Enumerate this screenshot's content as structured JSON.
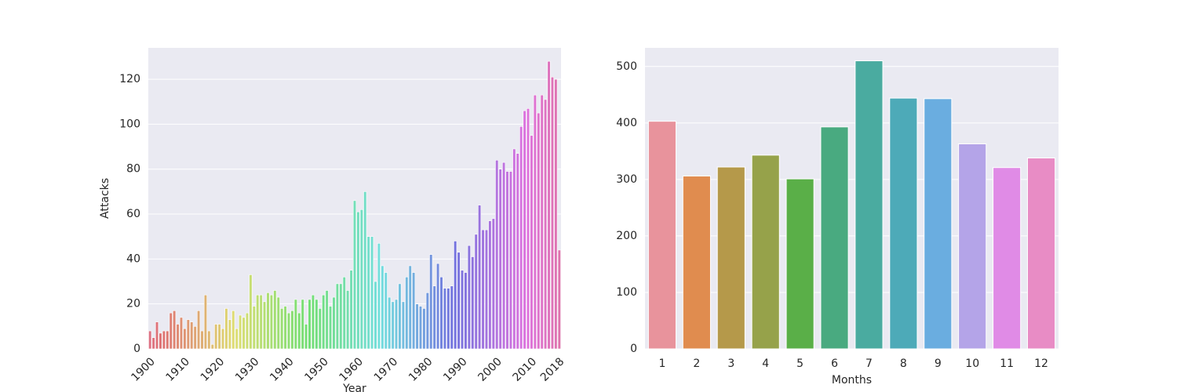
{
  "chart_data": [
    {
      "type": "bar",
      "xlabel": "Year",
      "ylabel": "Attacks",
      "palette": "husl",
      "grid": true,
      "categories": [
        "1900",
        null,
        null,
        null,
        null,
        null,
        null,
        null,
        null,
        null,
        "1910",
        null,
        null,
        null,
        null,
        null,
        null,
        null,
        null,
        null,
        "1920",
        null,
        null,
        null,
        null,
        null,
        null,
        null,
        null,
        null,
        "1930",
        null,
        null,
        null,
        null,
        null,
        null,
        null,
        null,
        null,
        "1940",
        null,
        null,
        null,
        null,
        null,
        null,
        null,
        null,
        null,
        "1950",
        null,
        null,
        null,
        null,
        null,
        null,
        null,
        null,
        null,
        "1960",
        null,
        null,
        null,
        null,
        null,
        null,
        null,
        null,
        null,
        "1970",
        null,
        null,
        null,
        null,
        null,
        null,
        null,
        null,
        null,
        "1980",
        null,
        null,
        null,
        null,
        null,
        null,
        null,
        null,
        null,
        "1990",
        null,
        null,
        null,
        null,
        null,
        null,
        null,
        null,
        null,
        "2000",
        null,
        null,
        null,
        null,
        null,
        null,
        null,
        null,
        null,
        "2010",
        null,
        null,
        null,
        null,
        null,
        null,
        null,
        "2018"
      ],
      "values": [
        8,
        5,
        12,
        7,
        8,
        8,
        16,
        17,
        11,
        14,
        9,
        13,
        12,
        10,
        17,
        8,
        24,
        8,
        2,
        11,
        11,
        9,
        18,
        13,
        17,
        9,
        15,
        14,
        16,
        33,
        19,
        24,
        24,
        21,
        25,
        24,
        26,
        23,
        18,
        19,
        16,
        17,
        22,
        16,
        22,
        11,
        22,
        24,
        22,
        18,
        24,
        26,
        19,
        23,
        29,
        29,
        32,
        26,
        35,
        66,
        61,
        62,
        70,
        50,
        50,
        30,
        47,
        37,
        34,
        23,
        21,
        22,
        29,
        21,
        32,
        37,
        34,
        20,
        19,
        18,
        25,
        42,
        28,
        38,
        32,
        27,
        27,
        28,
        48,
        43,
        35,
        34,
        46,
        41,
        51,
        64,
        53,
        53,
        57,
        58,
        84,
        80,
        83,
        79,
        79,
        89,
        87,
        99,
        106,
        107,
        95,
        113,
        105,
        113,
        111,
        128,
        121,
        120,
        44
      ],
      "ylim": [
        0,
        134
      ],
      "yticks": [
        0,
        20,
        40,
        60,
        80,
        100,
        120
      ]
    },
    {
      "type": "bar",
      "xlabel": "Months",
      "grid": true,
      "categories": [
        "1",
        "2",
        "3",
        "4",
        "5",
        "6",
        "7",
        "8",
        "9",
        "10",
        "11",
        "12"
      ],
      "values": [
        403,
        306,
        322,
        343,
        301,
        393,
        510,
        444,
        443,
        363,
        321,
        338
      ],
      "colors": [
        "#e8939c",
        "#e08c4f",
        "#b5994a",
        "#96a24a",
        "#5aaf48",
        "#49aa80",
        "#4aaba0",
        "#4daab8",
        "#6aade0",
        "#b4a4e8",
        "#e08be6",
        "#e88cc5"
      ],
      "ylim": [
        0,
        533
      ],
      "yticks": [
        0,
        100,
        200,
        300,
        400,
        500
      ]
    }
  ]
}
